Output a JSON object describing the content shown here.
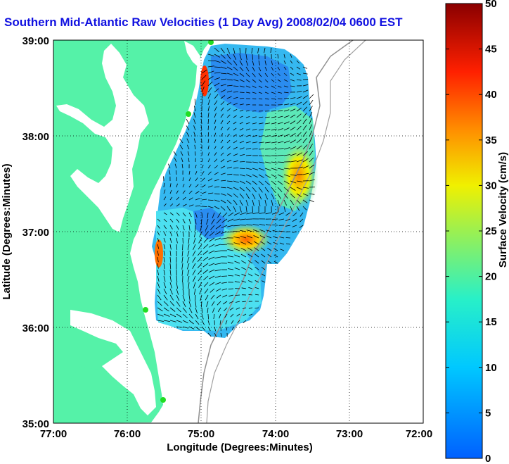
{
  "title": "Southern Mid-Atlantic Raw Velocities (1 Day Avg) 2008/02/04 0600 EST",
  "map": {
    "xlabel": "Longitude (Degrees:Minutes)",
    "ylabel": "Latitude (Degrees:Minutes)",
    "x_ticks": [
      "77:00",
      "76:00",
      "75:00",
      "74:00",
      "73:00",
      "72:00"
    ],
    "y_ticks": [
      "39:00",
      "38:00",
      "37:00",
      "36:00",
      "35:00"
    ],
    "lon_range": [
      -77,
      -72
    ],
    "lat_range": [
      35,
      39
    ]
  },
  "colorbar": {
    "label": "Surface Velocity (cm/s)",
    "ticks": [
      "0",
      "5",
      "10",
      "15",
      "20",
      "25",
      "30",
      "35",
      "40",
      "45",
      "50"
    ],
    "range": [
      0,
      50
    ]
  },
  "colors": {
    "land": "#55f2a8",
    "title": "#1010e0",
    "site_marker": "#22dd22"
  }
}
